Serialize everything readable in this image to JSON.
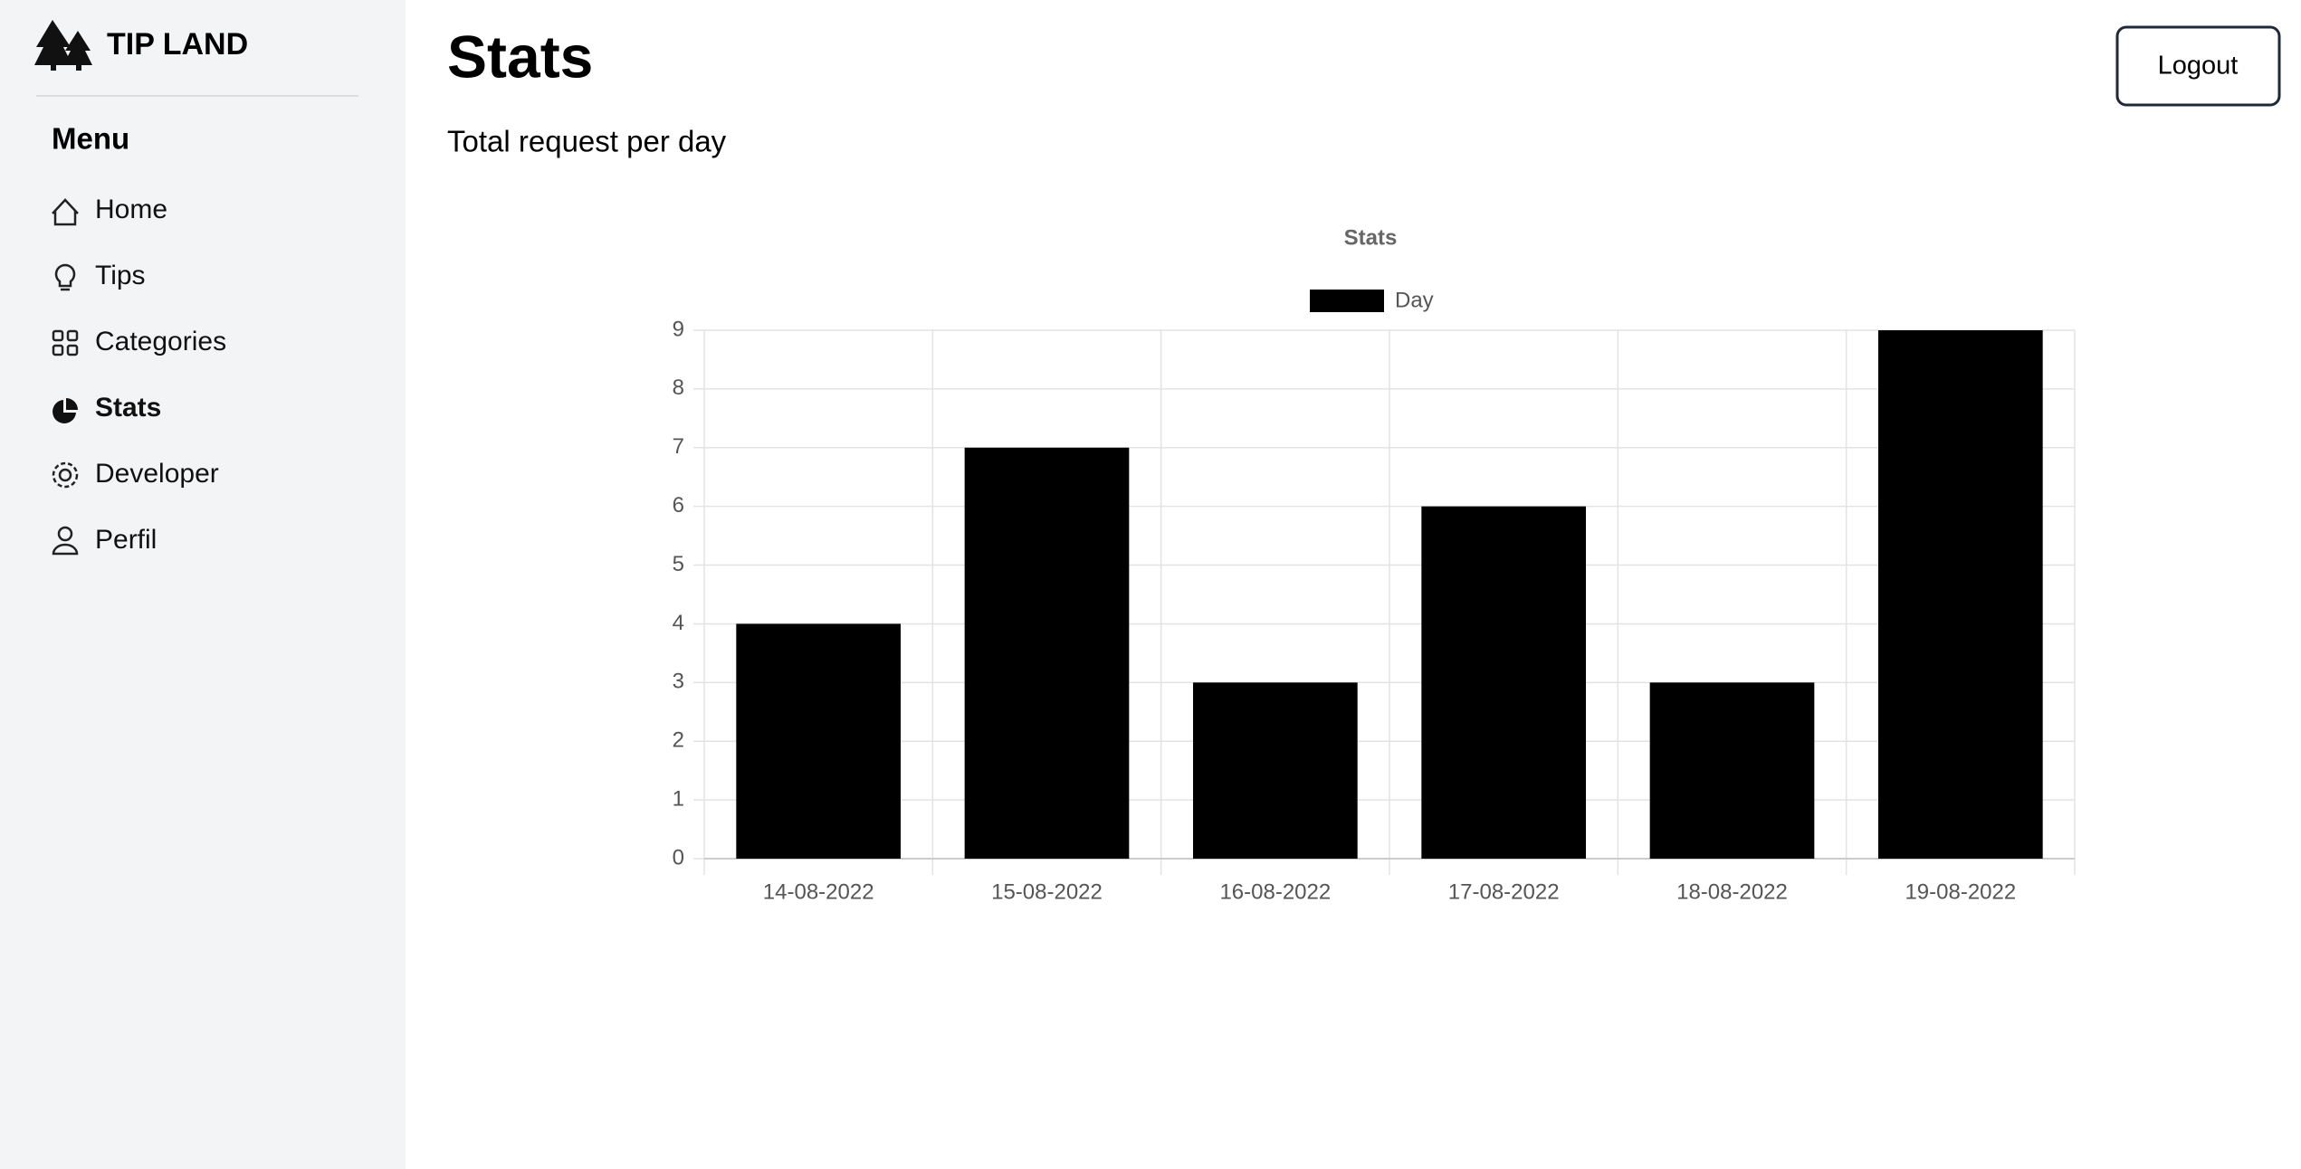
{
  "sidebar": {
    "brand": "TIP LAND",
    "menu_title": "Menu",
    "items": [
      "Home",
      "Tips",
      "Categories",
      "Stats",
      "Developer",
      "Perfil"
    ]
  },
  "header": {
    "title": "Stats",
    "logout": "Logout",
    "subtitle": "Total request per day"
  },
  "chart_data": {
    "type": "bar",
    "title": "Stats",
    "categories": [
      "14-08-2022",
      "15-08-2022",
      "16-08-2022",
      "17-08-2022",
      "18-08-2022",
      "19-08-2022"
    ],
    "series": [
      {
        "name": "Day",
        "color": "#000000",
        "values": [
          4,
          7,
          3,
          6,
          3,
          9
        ]
      }
    ],
    "ylim": [
      0,
      9
    ],
    "yticks": [
      0,
      1,
      2,
      3,
      4,
      5,
      6,
      7,
      8,
      9
    ],
    "grid": true,
    "legend": "top"
  }
}
